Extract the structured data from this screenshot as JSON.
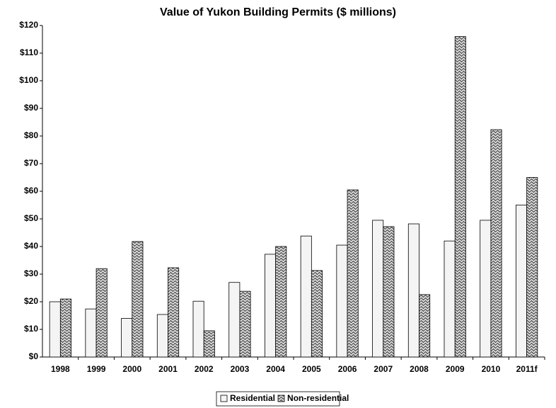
{
  "chart_data": {
    "type": "bar",
    "title": "Value of Yukon Building Permits ($ millions)",
    "categories": [
      "1998",
      "1999",
      "2000",
      "2001",
      "2002",
      "2003",
      "2004",
      "2005",
      "2006",
      "2007",
      "2008",
      "2009",
      "2010",
      "2011f"
    ],
    "series": [
      {
        "name": "Residential",
        "color": "#f4f4f4",
        "values": [
          20,
          17.4,
          14,
          15.4,
          20.2,
          27,
          37.2,
          43.8,
          40.5,
          49.5,
          48.2,
          42,
          49.5,
          55
        ]
      },
      {
        "name": "Non-residential",
        "color": "#9a9a9a",
        "values": [
          21,
          32,
          41.8,
          32.3,
          9.5,
          23.8,
          40,
          31.3,
          60.5,
          47.2,
          22.6,
          116,
          82.3,
          65
        ]
      }
    ],
    "ylim": [
      0,
      120
    ],
    "yticks": [
      {
        "value": 0,
        "label": "$0"
      },
      {
        "value": 10,
        "label": "$10"
      },
      {
        "value": 20,
        "label": "$20"
      },
      {
        "value": 30,
        "label": "$30"
      },
      {
        "value": 40,
        "label": "$40"
      },
      {
        "value": 50,
        "label": "$50"
      },
      {
        "value": 60,
        "label": "$60"
      },
      {
        "value": 70,
        "label": "$70"
      },
      {
        "value": 80,
        "label": "$80"
      },
      {
        "value": 90,
        "label": "$90"
      },
      {
        "value": 100,
        "label": "$100"
      },
      {
        "value": 110,
        "label": "$110"
      },
      {
        "value": 120,
        "label": "$120"
      }
    ],
    "legend": "bottom"
  }
}
